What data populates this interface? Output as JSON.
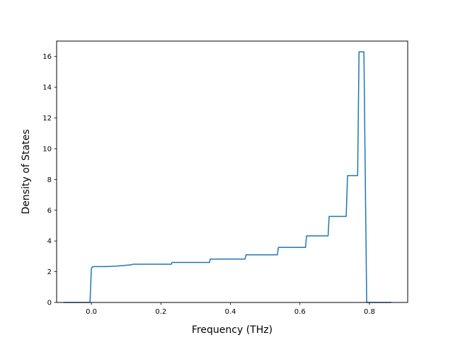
{
  "chart_data": {
    "type": "line",
    "title": "",
    "xlabel": "Frequency (THz)",
    "ylabel": "Density of States",
    "xlim": [
      -0.1,
      0.91
    ],
    "ylim": [
      0,
      17
    ],
    "x_ticks": [
      0.0,
      0.2,
      0.4,
      0.6,
      0.8
    ],
    "x_tick_labels": [
      "0.0",
      "0.2",
      "0.4",
      "0.6",
      "0.8"
    ],
    "y_ticks": [
      0,
      2,
      4,
      6,
      8,
      10,
      12,
      14,
      16
    ],
    "y_tick_labels": [
      "0",
      "2",
      "4",
      "6",
      "8",
      "10",
      "12",
      "14",
      "16"
    ],
    "grid": false,
    "series": [
      {
        "color": "#1f77b4",
        "x": [
          -0.08,
          -0.004,
          0.0,
          0.003,
          0.01,
          0.04,
          0.07,
          0.1,
          0.115,
          0.12,
          0.23,
          0.232,
          0.34,
          0.342,
          0.442,
          0.445,
          0.535,
          0.538,
          0.616,
          0.619,
          0.681,
          0.684,
          0.733,
          0.737,
          0.766,
          0.77,
          0.784,
          0.792,
          0.863
        ],
        "y": [
          0,
          0,
          2.2,
          2.32,
          2.33,
          2.33,
          2.36,
          2.42,
          2.45,
          2.49,
          2.49,
          2.6,
          2.6,
          2.82,
          2.82,
          3.1,
          3.1,
          3.58,
          3.58,
          4.33,
          4.33,
          5.6,
          5.6,
          8.25,
          8.25,
          16.3,
          16.3,
          0,
          0
        ]
      }
    ]
  }
}
